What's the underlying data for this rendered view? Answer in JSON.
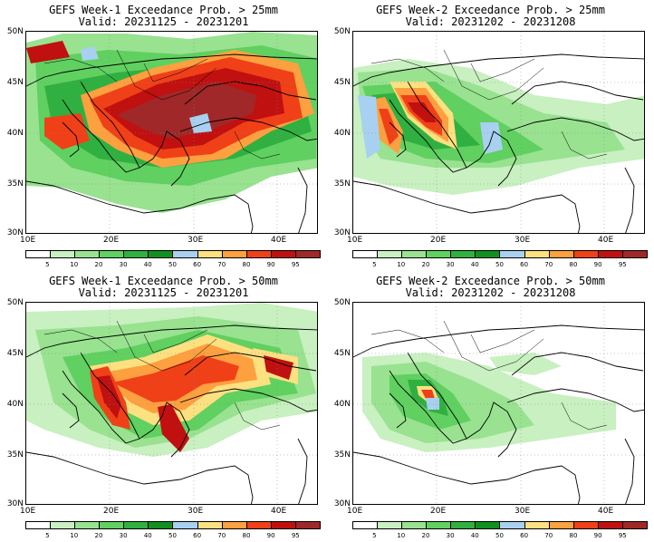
{
  "colorbar": {
    "levels": [
      "5",
      "10",
      "20",
      "30",
      "40",
      "50",
      "60",
      "70",
      "80",
      "90",
      "95"
    ],
    "colors": [
      "#ffffff",
      "#c8f0c0",
      "#98e290",
      "#60d060",
      "#30b040",
      "#10901e",
      "#a8d0f0",
      "#fde080",
      "#fda040",
      "#f04018",
      "#c01010",
      "#a02828"
    ]
  },
  "map": {
    "lat_labels": [
      "50N",
      "45N",
      "40N",
      "35N",
      "30N"
    ],
    "lon_labels": [
      "10E",
      "20E",
      "30E",
      "40E"
    ]
  },
  "panels": [
    {
      "title": "GEFS Week-1 Exceedance Prob. > 25mm",
      "valid": "Valid: 20231125 - 20231201"
    },
    {
      "title": "GEFS Week-2 Exceedance Prob. > 25mm",
      "valid": "Valid: 20231202 - 20231208"
    },
    {
      "title": "GEFS Week-1 Exceedance Prob. > 50mm",
      "valid": "Valid: 20231125 - 20231201"
    },
    {
      "title": "GEFS Week-2 Exceedance Prob. > 50mm",
      "valid": "Valid: 20231202 - 20231208"
    }
  ]
}
